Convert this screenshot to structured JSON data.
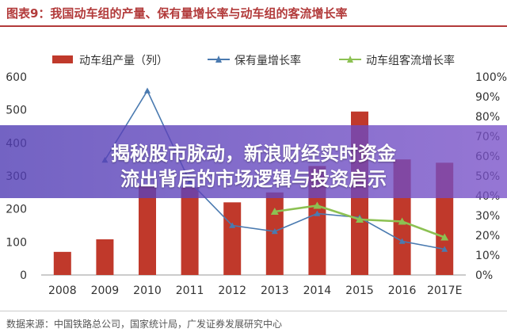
{
  "figure": {
    "title": "图表9：我国动车组的产量、保有量增长率与动车组的客流增长率",
    "source": "数据来源：中国铁路总公司，国家统计局，广发证券发展研究中心"
  },
  "overlay": {
    "line1": "揭秘股市脉动，新浪财经实时资金",
    "line2": "流出背后的市场逻辑与投资启示"
  },
  "chart_data": {
    "type": "bar",
    "categories": [
      "2008",
      "2009",
      "2010",
      "2011",
      "2012",
      "2013",
      "2014",
      "2015",
      "2016",
      "2017E"
    ],
    "series": [
      {
        "name": "动车组产量（列）",
        "type": "bar",
        "axis": "left",
        "color": "#c0392b",
        "values": [
          70,
          108,
          270,
          265,
          220,
          250,
          330,
          495,
          350,
          340
        ]
      },
      {
        "name": "保有量增长率",
        "type": "line",
        "axis": "right",
        "color": "#4a7ab0",
        "values": [
          null,
          58,
          93,
          47,
          25,
          22,
          31,
          29,
          17,
          13
        ]
      },
      {
        "name": "动车组客流增长率",
        "type": "line",
        "axis": "right",
        "color": "#8cc152",
        "values": [
          null,
          null,
          null,
          null,
          null,
          32,
          35,
          28,
          27,
          19
        ]
      }
    ],
    "y_left": {
      "ticks": [
        "0",
        "100",
        "200",
        "300",
        "400",
        "500",
        "600"
      ],
      "ylim": [
        0,
        600
      ]
    },
    "y_right": {
      "ticks": [
        "0%",
        "10%",
        "20%",
        "30%",
        "40%",
        "50%",
        "60%",
        "70%",
        "80%",
        "90%",
        "100%"
      ],
      "ylim": [
        0,
        100
      ]
    },
    "legend_position": "top",
    "grid": false
  }
}
